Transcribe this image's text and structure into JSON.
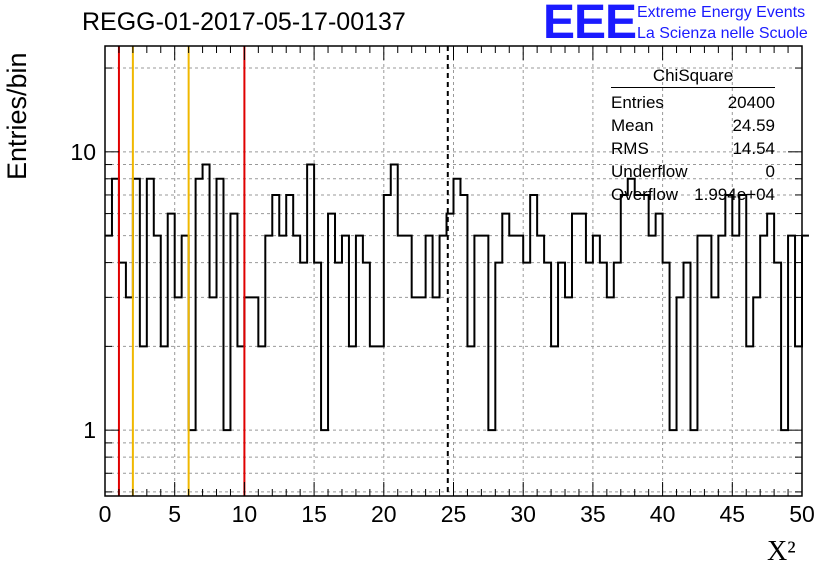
{
  "header": {
    "title": "REGG-01-2017-05-17-00137",
    "logo_text": "EEE",
    "logo_line1": "Extreme Energy Events",
    "logo_line2": "La Scienza nelle Scuole"
  },
  "stats": {
    "name": "ChiSquare",
    "rows": [
      {
        "label": "Entries",
        "value": "20400"
      },
      {
        "label": "Mean",
        "value": "24.59"
      },
      {
        "label": "RMS",
        "value": "14.54"
      },
      {
        "label": "Underflow",
        "value": "0"
      },
      {
        "label": "Overflow",
        "value": "1.994e+04"
      }
    ]
  },
  "chart_data": {
    "type": "histogram",
    "ylabel": "Entries/bin",
    "xlabel": "X²",
    "xlim": [
      0,
      50
    ],
    "ylim": [
      0.58,
      24
    ],
    "log_y": true,
    "grid": true,
    "bin_width": 0.5,
    "xticks": [
      "0",
      "5",
      "10",
      "15",
      "20",
      "25",
      "30",
      "35",
      "40",
      "45",
      "50"
    ],
    "yticks": [
      "1",
      "10"
    ],
    "values": [
      5,
      8,
      4,
      3,
      8,
      2,
      8,
      5,
      2,
      6,
      3,
      5,
      1,
      8,
      9,
      3,
      8,
      1,
      6,
      2,
      3,
      3,
      2,
      5,
      7,
      5,
      7,
      5,
      4,
      9,
      4,
      1,
      6,
      4,
      5,
      2,
      5,
      4,
      2,
      2,
      7,
      9,
      5,
      5,
      3,
      3,
      5,
      3,
      5,
      6,
      8,
      7,
      2,
      5,
      5,
      1,
      4,
      6,
      5,
      5,
      4,
      7,
      5,
      4,
      2,
      4,
      3,
      6,
      6,
      4,
      5,
      4,
      3,
      4,
      7,
      8,
      7,
      7,
      5,
      6,
      4,
      1,
      3,
      4,
      1,
      5,
      5,
      3,
      5,
      7,
      5,
      7,
      2,
      3,
      5,
      6,
      4,
      1,
      5,
      2,
      5
    ],
    "series_color": "#000000",
    "lines": [
      {
        "x": 1,
        "color": "#e00000",
        "style": "solid"
      },
      {
        "x": 2,
        "color": "#f0b800",
        "style": "solid"
      },
      {
        "x": 6,
        "color": "#f0b800",
        "style": "solid"
      },
      {
        "x": 10,
        "color": "#e00000",
        "style": "solid"
      },
      {
        "x": 24.59,
        "color": "#000000",
        "style": "dashed"
      }
    ]
  }
}
